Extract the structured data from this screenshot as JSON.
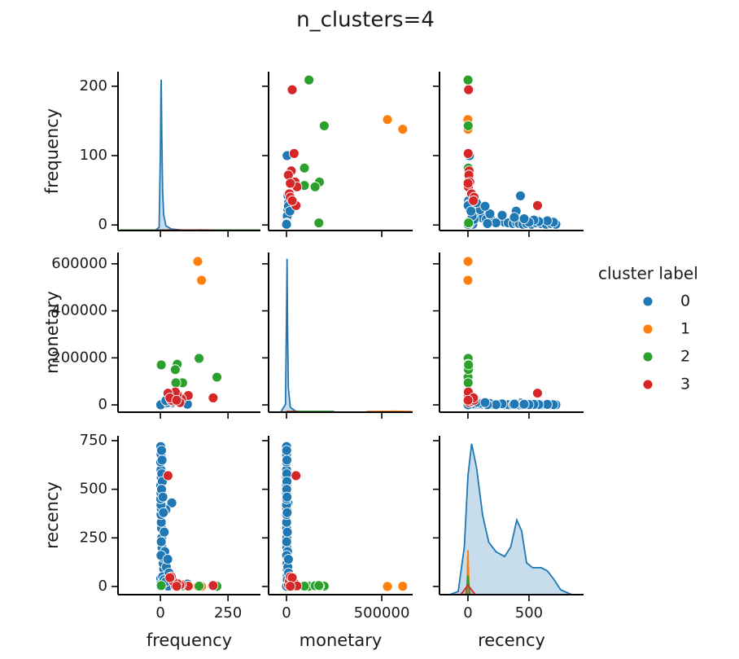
{
  "chart_data": {
    "type": "pairplot",
    "title": "n_clusters=4",
    "legend_title": "cluster label",
    "variables": [
      {
        "name": "frequency",
        "xlim": [
          -157,
          370
        ],
        "xticks": [
          0,
          250
        ],
        "ylim": [
          -8,
          221
        ],
        "yticks": [
          0,
          100,
          200
        ]
      },
      {
        "name": "monetary",
        "xlim": [
          -94000,
          662000
        ],
        "xticks": [
          0,
          500000
        ],
        "ylim": [
          -31000,
          648000
        ],
        "yticks": [
          0,
          200000,
          400000,
          600000
        ]
      },
      {
        "name": "recency",
        "xlim": [
          -233,
          947
        ],
        "xticks": [
          0,
          500
        ],
        "ylim": [
          -42,
          775
        ],
        "yticks": [
          0,
          250,
          500,
          750
        ]
      }
    ],
    "series": [
      {
        "name": "0",
        "color": "#1f77b4",
        "frequency": [
          100,
          42,
          20,
          35,
          30,
          25,
          28,
          18,
          15,
          12,
          10,
          8,
          6,
          5,
          4,
          3,
          2,
          3,
          2,
          1,
          2,
          1,
          3,
          2,
          1,
          2,
          1,
          4,
          6,
          5,
          7,
          4,
          9,
          11,
          14,
          16,
          22,
          1,
          2,
          5,
          8,
          13,
          3,
          2,
          1,
          32,
          27,
          20
        ],
        "monetary": [
          3000,
          8000,
          5000,
          20000,
          15000,
          12000,
          9000,
          6000,
          4000,
          3000,
          2500,
          2000,
          1500,
          1200,
          900,
          800,
          600,
          700,
          500,
          400,
          500,
          300,
          900,
          700,
          400,
          500,
          300,
          1000,
          2000,
          1500,
          2200,
          1100,
          2800,
          3500,
          4500,
          5500,
          7000,
          200,
          400,
          1800,
          2600,
          4000,
          1000,
          600,
          250,
          11000,
          10000,
          18000
        ],
        "recency": [
          13,
          430,
          395,
          5,
          10,
          20,
          2,
          30,
          60,
          90,
          120,
          150,
          200,
          250,
          300,
          330,
          370,
          400,
          420,
          450,
          480,
          520,
          560,
          600,
          640,
          680,
          720,
          700,
          650,
          580,
          540,
          500,
          460,
          380,
          280,
          180,
          100,
          40,
          15,
          8,
          50,
          35,
          230,
          160,
          1,
          70,
          140,
          25
        ],
        "kde": {
          "frequency": {
            "x": [
              -20,
              -5,
              0,
              2,
              3,
              5,
              8,
              12,
              20,
              40,
              100,
              370
            ],
            "density": [
              0,
              0.02,
              0.5,
              0.9,
              0.95,
              0.6,
              0.25,
              0.1,
              0.03,
              0.01,
              0,
              0
            ]
          },
          "monetary": {
            "x": [
              -30000,
              -5000,
              0,
              3000,
              6000,
              10000,
              20000,
              50000,
              100000
            ],
            "density": [
              0,
              0.05,
              0.6,
              0.96,
              0.5,
              0.15,
              0.03,
              0.005,
              0
            ]
          },
          "recency": {
            "x": [
              -150,
              -80,
              -30,
              0,
              30,
              70,
              120,
              170,
              230,
              300,
              350,
              400,
              440,
              480,
              530,
              600,
              650,
              700,
              760,
              850
            ],
            "density": [
              0,
              0.02,
              0.3,
              0.75,
              0.95,
              0.8,
              0.5,
              0.33,
              0.27,
              0.24,
              0.3,
              0.47,
              0.4,
              0.2,
              0.17,
              0.17,
              0.15,
              0.1,
              0.03,
              0
            ]
          }
        }
      },
      {
        "name": "1",
        "color": "#ff7f0e",
        "frequency": [
          138,
          152
        ],
        "monetary": [
          610000,
          530000
        ],
        "recency": [
          1,
          0
        ],
        "kde": {
          "frequency": {
            "x": [
              100,
              150,
              190
            ],
            "density": [
              0,
              0.004,
              0
            ]
          },
          "monetary": {
            "x": [
              420000,
              570000,
              660000
            ],
            "density": [
              0.004,
              0.006,
              0.004
            ]
          },
          "recency": {
            "x": [
              -10,
              0,
              10
            ],
            "density": [
              0,
              0.28,
              0
            ]
          }
        }
      },
      {
        "name": "2",
        "color": "#2ca02c",
        "frequency": [
          209,
          143,
          82,
          62,
          55,
          57,
          3
        ],
        "monetary": [
          118000,
          198000,
          94000,
          173000,
          150000,
          94000,
          170000
        ],
        "recency": [
          1,
          2,
          3,
          1,
          4,
          2,
          5
        ],
        "kde": {
          "frequency": {
            "x": [
              -150,
              370
            ],
            "density": [
              0.003,
              0.003
            ]
          },
          "monetary": {
            "x": [
              0,
              250000
            ],
            "density": [
              0.005,
              0.005
            ]
          },
          "recency": {
            "x": [
              -15,
              0,
              15
            ],
            "density": [
              0,
              0.12,
              0
            ]
          }
        }
      },
      {
        "name": "3",
        "color": "#d62728",
        "frequency": [
          195,
          103,
          78,
          72,
          62,
          55,
          45,
          40,
          28,
          35,
          60
        ],
        "monetary": [
          30000,
          40000,
          25000,
          10000,
          45000,
          55000,
          15000,
          20000,
          50000,
          30000,
          20000
        ],
        "recency": [
          5,
          2,
          10,
          8,
          15,
          3,
          30,
          50,
          570,
          45,
          1
        ],
        "kde": {
          "frequency": {
            "x": [
              -20,
              100,
              200
            ],
            "density": [
              0.002,
              0.003,
              0.002
            ]
          },
          "monetary": {
            "x": [
              0,
              60000
            ],
            "density": [
              0.004,
              0.004
            ]
          },
          "recency": {
            "x": [
              -60,
              0,
              60
            ],
            "density": [
              0,
              0.06,
              0
            ]
          }
        }
      }
    ]
  }
}
